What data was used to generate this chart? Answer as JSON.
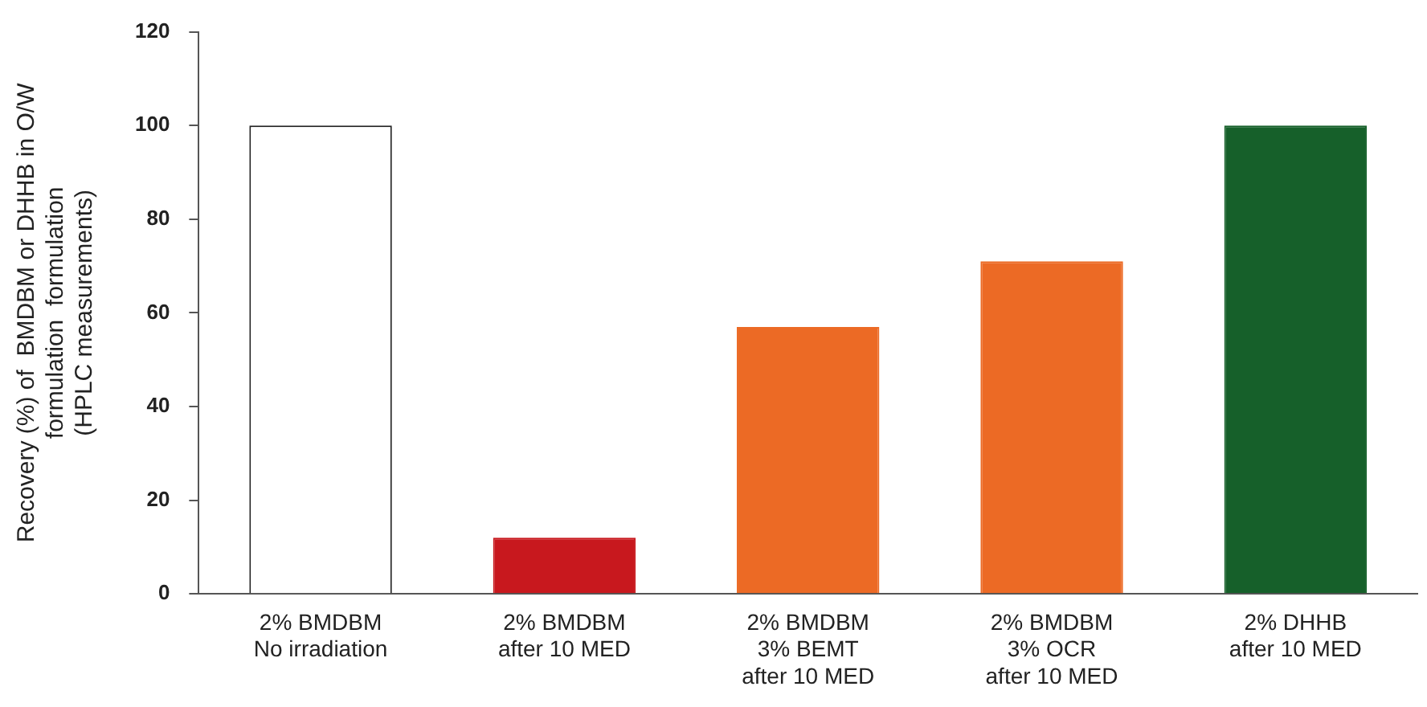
{
  "chart_data": {
    "type": "bar",
    "ylabel": "Recovery (%) of  BMDBM or DHHB in O/W\nformulation  formulation\n(HPLC measurements)",
    "categories": [
      "2% BMDBM\nNo irradiation",
      "2% BMDBM\nafter 10 MED",
      "2% BMDBM\n3% BEMT\nafter 10 MED",
      "2% BMDBM\n3% OCR\nafter 10 MED",
      "2% DHHB\nafter 10 MED"
    ],
    "values": [
      100,
      12,
      57,
      71,
      100
    ],
    "colors": [
      "#ffffff",
      "#c8181e",
      "#ec6a25",
      "#ec6a25",
      "#16602a"
    ],
    "ylim": [
      0,
      120
    ],
    "yticks": [
      0,
      20,
      40,
      60,
      80,
      100,
      120
    ],
    "grid": false,
    "legend": false
  }
}
